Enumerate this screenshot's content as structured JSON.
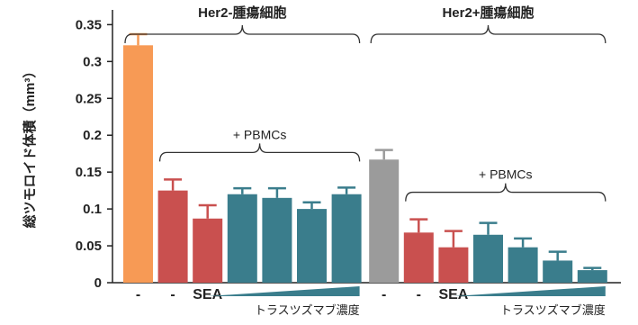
{
  "chart_data": {
    "type": "bar",
    "ylabel": "総ツモロイド体積（mm³）",
    "ylim": [
      0,
      0.37
    ],
    "yticks": [
      0,
      0.05,
      0.1,
      0.15,
      0.2,
      0.25,
      0.3,
      0.35
    ],
    "ytick_labels": [
      "0",
      "0.05",
      "0.1",
      "0.15",
      "0.2",
      "0.25",
      "0.3",
      "0.35"
    ],
    "grid": false,
    "groups": [
      {
        "label": "Her2-腫瘍細胞",
        "subgroup_label": "+ PBMCs",
        "gradient_label": "トラスツズマブ濃度"
      },
      {
        "label": "Her2+腫瘍細胞",
        "subgroup_label": "+ PBMCs",
        "gradient_label": "トラスツズマブ濃度"
      }
    ],
    "bars": [
      {
        "group": 0,
        "value": 0.322,
        "error": 0.015,
        "color": "#f79a55",
        "label": "-"
      },
      {
        "group": 0,
        "value": 0.125,
        "error": 0.015,
        "color": "#c9504f",
        "label": "-"
      },
      {
        "group": 0,
        "value": 0.087,
        "error": 0.018,
        "color": "#c9504f",
        "label": "SEA"
      },
      {
        "group": 0,
        "value": 0.12,
        "error": 0.008,
        "color": "#3a7d8c",
        "label": ""
      },
      {
        "group": 0,
        "value": 0.115,
        "error": 0.013,
        "color": "#3a7d8c",
        "label": ""
      },
      {
        "group": 0,
        "value": 0.1,
        "error": 0.009,
        "color": "#3a7d8c",
        "label": ""
      },
      {
        "group": 0,
        "value": 0.12,
        "error": 0.009,
        "color": "#3a7d8c",
        "label": ""
      },
      {
        "group": 1,
        "value": 0.167,
        "error": 0.013,
        "color": "#9b9b9b",
        "label": "-"
      },
      {
        "group": 1,
        "value": 0.068,
        "error": 0.018,
        "color": "#c9504f",
        "label": "-"
      },
      {
        "group": 1,
        "value": 0.048,
        "error": 0.022,
        "color": "#c9504f",
        "label": "SEA"
      },
      {
        "group": 1,
        "value": 0.065,
        "error": 0.016,
        "color": "#3a7d8c",
        "label": ""
      },
      {
        "group": 1,
        "value": 0.048,
        "error": 0.012,
        "color": "#3a7d8c",
        "label": ""
      },
      {
        "group": 1,
        "value": 0.03,
        "error": 0.012,
        "color": "#3a7d8c",
        "label": ""
      },
      {
        "group": 1,
        "value": 0.017,
        "error": 0.003,
        "color": "#3a7d8c",
        "label": ""
      }
    ]
  }
}
